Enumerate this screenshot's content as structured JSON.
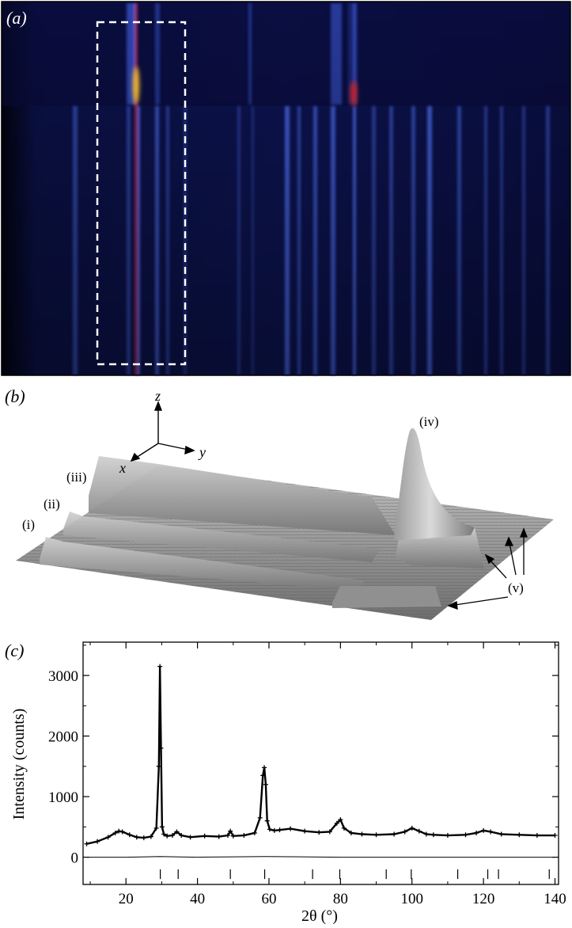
{
  "panels": {
    "a": {
      "label": "(a)"
    },
    "b": {
      "label": "(b)",
      "axes": {
        "x": "x",
        "y": "y",
        "z": "z"
      },
      "peaks": [
        "(i)",
        "(ii)",
        "(iii)",
        "(iv)",
        "(v)"
      ]
    },
    "c": {
      "label": "(c)"
    }
  },
  "colors": {
    "heatmap_background": "#0a0f3c",
    "heatmap_line": "#3a5ad8",
    "heatmap_hot": "#ffd23c",
    "surface": "#8a8a8a",
    "plot": "#000000"
  },
  "chart_data": [
    {
      "type": "heatmap",
      "panel": "a",
      "description_items": [
        "dashed-selection-box"
      ]
    },
    {
      "type": "surface",
      "panel": "b"
    },
    {
      "type": "scatter",
      "panel": "c",
      "xlabel": "2θ (°)",
      "ylabel": "Intensity (counts)",
      "xlim": [
        8,
        141
      ],
      "ylim": [
        -450,
        3550
      ],
      "x_ticks": [
        "20",
        "40",
        "60",
        "80",
        "100",
        "120",
        "140"
      ],
      "x_tick_values": [
        20,
        40,
        60,
        80,
        100,
        120,
        140
      ],
      "y_ticks": [
        "0",
        "1000",
        "2000",
        "3000"
      ],
      "y_tick_values": [
        0,
        1000,
        2000,
        3000
      ],
      "series": [
        {
          "kind": "observed",
          "x": [
            9,
            12,
            15,
            17,
            18,
            19,
            21,
            23,
            25,
            27,
            28.5,
            29.2,
            29.5,
            29.8,
            30.1,
            30.6,
            31.5,
            33,
            34.2,
            35.5,
            38,
            42,
            46,
            48.5,
            49.2,
            50,
            53,
            56,
            57.5,
            58.3,
            58.7,
            59.1,
            59.5,
            60.2,
            61.5,
            63,
            66,
            70,
            74,
            77,
            79,
            80,
            81,
            83,
            86,
            90,
            95,
            98,
            100,
            102,
            104,
            106,
            110,
            115,
            118,
            120,
            122,
            125,
            130,
            135,
            140
          ],
          "y": [
            220,
            260,
            330,
            400,
            430,
            420,
            370,
            330,
            320,
            340,
            480,
            1500,
            3150,
            1800,
            500,
            380,
            350,
            360,
            420,
            360,
            330,
            350,
            340,
            360,
            430,
            350,
            360,
            400,
            650,
            1350,
            1480,
            1200,
            600,
            460,
            440,
            450,
            470,
            430,
            410,
            420,
            560,
            620,
            480,
            400,
            380,
            370,
            380,
            420,
            480,
            430,
            380,
            370,
            360,
            370,
            400,
            440,
            420,
            380,
            370,
            360,
            360
          ]
        },
        {
          "kind": "difference",
          "x": [
            9,
            20,
            29.5,
            40,
            59,
            80,
            100,
            120,
            140
          ],
          "y": [
            0,
            0,
            10,
            0,
            10,
            0,
            0,
            0,
            0
          ]
        }
      ],
      "reflection_markers": [
        29.6,
        34.6,
        49.2,
        58.8,
        72.2,
        79.8,
        92.8,
        99.8,
        112.8,
        121.2,
        124.2,
        138.4
      ]
    }
  ]
}
